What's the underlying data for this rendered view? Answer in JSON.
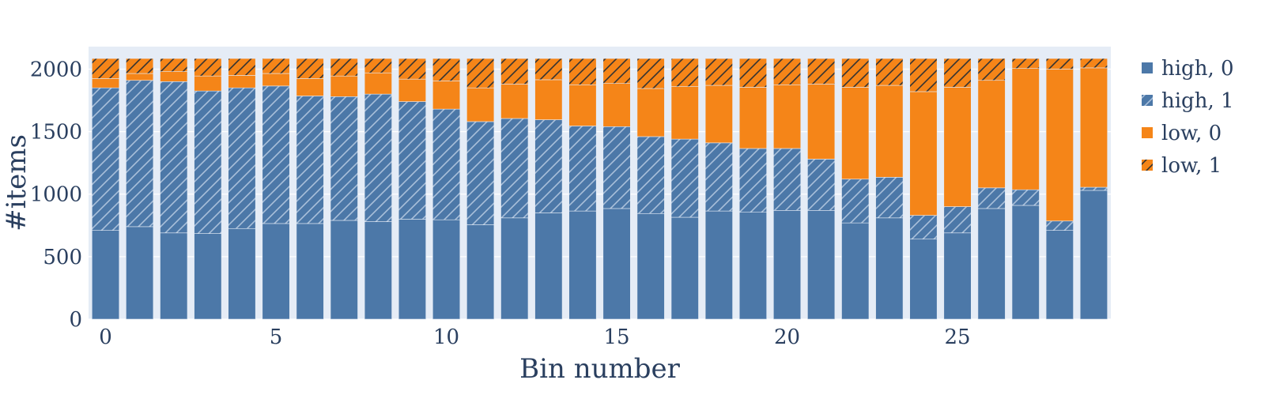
{
  "chart_data": {
    "type": "bar",
    "barmode": "stack",
    "xlabel": "Bin number",
    "ylabel": "#items",
    "xlim": [
      -0.5,
      29.5
    ],
    "ylim": [
      0,
      2180
    ],
    "x_ticks": [
      0,
      5,
      10,
      15,
      20,
      25
    ],
    "y_ticks": [
      0,
      500,
      1000,
      1500,
      2000
    ],
    "grid": true,
    "legend_position": "right",
    "plot_background": "#e5ecf6",
    "x": [
      0,
      1,
      2,
      3,
      4,
      5,
      6,
      7,
      8,
      9,
      10,
      11,
      12,
      13,
      14,
      15,
      16,
      17,
      18,
      19,
      20,
      21,
      22,
      23,
      24,
      25,
      26,
      27,
      28,
      29
    ],
    "series": [
      {
        "name": "high, 0",
        "color": "#4c78a8",
        "pattern": "none",
        "values": [
          710,
          740,
          690,
          685,
          725,
          765,
          765,
          790,
          780,
          800,
          795,
          755,
          810,
          850,
          865,
          885,
          845,
          815,
          865,
          855,
          870,
          870,
          770,
          810,
          640,
          690,
          885,
          910,
          710,
          1030
        ]
      },
      {
        "name": "high, 1",
        "color": "#4c78a8",
        "pattern": "diagonal",
        "values": [
          1140,
          1170,
          1210,
          1140,
          1125,
          1100,
          1020,
          990,
          1020,
          940,
          885,
          825,
          795,
          745,
          680,
          655,
          615,
          625,
          545,
          510,
          495,
          410,
          350,
          325,
          190,
          210,
          165,
          125,
          75,
          25
        ]
      },
      {
        "name": "low, 0",
        "color": "#f58518",
        "pattern": "none",
        "values": [
          75,
          55,
          80,
          120,
          100,
          100,
          140,
          165,
          170,
          180,
          225,
          270,
          275,
          320,
          330,
          345,
          385,
          420,
          460,
          490,
          510,
          600,
          735,
          735,
          990,
          955,
          860,
          970,
          1215,
          955
        ]
      },
      {
        "name": "low, 1",
        "color": "#f58518",
        "pattern": "diagonal",
        "values": [
          160,
          120,
          105,
          140,
          135,
          120,
          160,
          140,
          115,
          165,
          180,
          235,
          205,
          170,
          210,
          200,
          240,
          225,
          215,
          230,
          210,
          205,
          230,
          215,
          265,
          230,
          175,
          80,
          85,
          75
        ]
      }
    ]
  }
}
